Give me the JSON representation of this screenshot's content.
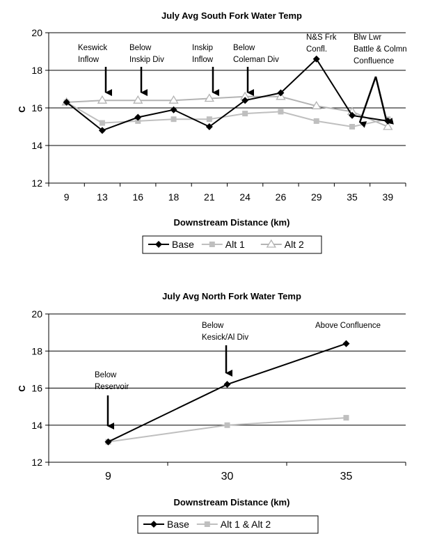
{
  "chart_data": [
    {
      "type": "line",
      "title": "July Avg South Fork Water Temp",
      "xlabel": "Downstream Distance (km)",
      "ylabel": "C",
      "ylim": [
        12,
        20
      ],
      "yticks": [
        "12",
        "14",
        "16",
        "18",
        "20"
      ],
      "categories": [
        "9",
        "13",
        "16",
        "18",
        "21",
        "24",
        "26",
        "29",
        "35",
        "39"
      ],
      "series": [
        {
          "name": "Base",
          "color": "#000000",
          "marker": "diamond",
          "values": [
            16.3,
            14.8,
            15.5,
            15.9,
            15.0,
            16.4,
            16.8,
            18.6,
            15.6,
            15.3
          ]
        },
        {
          "name": "Alt 1",
          "color": "#bfbfbf",
          "marker": "square",
          "values": [
            16.3,
            15.2,
            15.3,
            15.4,
            15.4,
            15.7,
            15.8,
            15.3,
            15.0,
            15.4
          ]
        },
        {
          "name": "Alt 2",
          "color": "#b3b3b3",
          "marker": "triangle",
          "values": [
            16.3,
            16.4,
            16.4,
            16.4,
            16.5,
            16.6,
            16.6,
            16.1,
            15.8,
            15.0
          ]
        }
      ],
      "annotations": [
        {
          "lines": [
            "Keswick",
            "Inflow"
          ],
          "category": "13"
        },
        {
          "lines": [
            "Below",
            "Inskip Div"
          ],
          "category": "16"
        },
        {
          "lines": [
            "Inskip",
            "Inflow"
          ],
          "category": "21"
        },
        {
          "lines": [
            "Below",
            "Coleman Div"
          ],
          "category": "24"
        },
        {
          "lines": [
            "N&S Frk",
            "Confl."
          ],
          "category": "29"
        },
        {
          "lines": [
            "Blw Lwr",
            "Battle & Colmn",
            "Confluence"
          ],
          "category": "35"
        }
      ],
      "grid": true,
      "legend": "bottom"
    },
    {
      "type": "line",
      "title": "July Avg North Fork Water Temp",
      "xlabel": "Downstream Distance (km)",
      "ylabel": "C",
      "ylim": [
        12,
        20
      ],
      "yticks": [
        "12",
        "14",
        "16",
        "18",
        "20"
      ],
      "categories": [
        "9",
        "30",
        "35"
      ],
      "series": [
        {
          "name": "Base",
          "color": "#000000",
          "marker": "diamond",
          "values": [
            13.1,
            16.2,
            18.4
          ]
        },
        {
          "name": "Alt 1 & Alt 2",
          "color": "#bfbfbf",
          "marker": "square",
          "values": [
            13.1,
            14.0,
            14.4
          ]
        }
      ],
      "annotations": [
        {
          "lines": [
            "Below",
            "Reservoir"
          ],
          "category": "9"
        },
        {
          "lines": [
            "Below",
            "Kesick/Al Div"
          ],
          "category": "30"
        },
        {
          "lines": [
            "Above Confluence"
          ],
          "category": "35"
        }
      ],
      "grid": true,
      "legend": "bottom"
    }
  ]
}
